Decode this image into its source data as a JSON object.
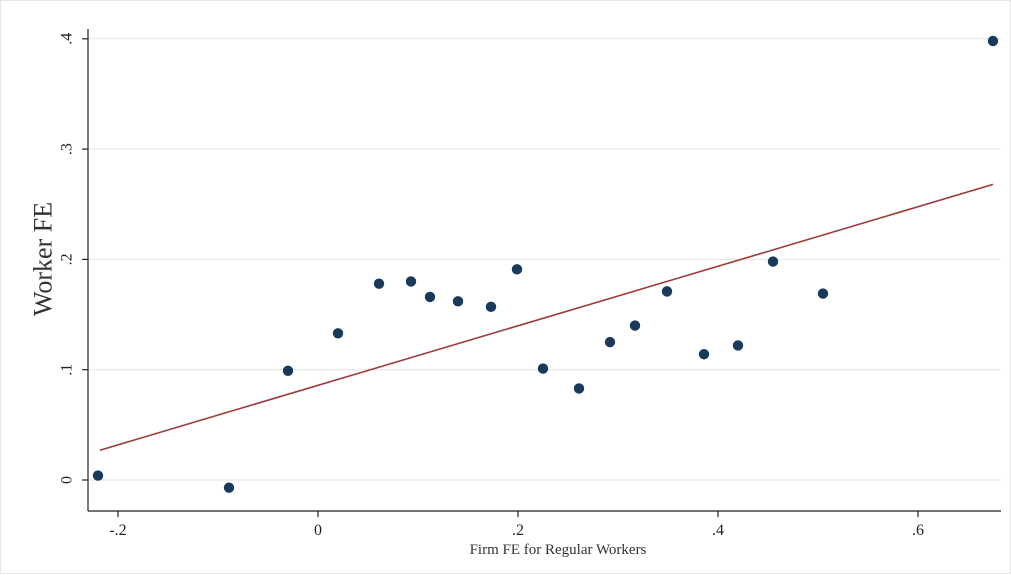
{
  "chart_data": {
    "type": "scatter",
    "xlabel": "Firm FE for Regular Workers",
    "ylabel": "Worker FE",
    "xlim": [
      -0.2,
      0.6
    ],
    "ylim": [
      0,
      0.4
    ],
    "x_ticks": [
      -0.2,
      0,
      0.2,
      0.4,
      0.6
    ],
    "x_tick_labels": [
      "-.2",
      "0",
      ".2",
      ".4",
      ".6"
    ],
    "y_ticks": [
      0,
      0.1,
      0.2,
      0.3,
      0.4
    ],
    "y_tick_labels": [
      "0",
      ".1",
      ".2",
      ".3",
      ".4"
    ],
    "grid": "horizontal",
    "legend": "none",
    "series": [
      {
        "type": "scatter",
        "color": "#1a3a5c",
        "points": [
          {
            "x": -0.22,
            "y": 0.004
          },
          {
            "x": -0.089,
            "y": -0.007
          },
          {
            "x": -0.03,
            "y": 0.099
          },
          {
            "x": 0.02,
            "y": 0.133
          },
          {
            "x": 0.061,
            "y": 0.178
          },
          {
            "x": 0.093,
            "y": 0.18
          },
          {
            "x": 0.112,
            "y": 0.166
          },
          {
            "x": 0.14,
            "y": 0.162
          },
          {
            "x": 0.173,
            "y": 0.157
          },
          {
            "x": 0.199,
            "y": 0.191
          },
          {
            "x": 0.225,
            "y": 0.101
          },
          {
            "x": 0.261,
            "y": 0.083
          },
          {
            "x": 0.292,
            "y": 0.125
          },
          {
            "x": 0.317,
            "y": 0.14
          },
          {
            "x": 0.349,
            "y": 0.171
          },
          {
            "x": 0.386,
            "y": 0.114
          },
          {
            "x": 0.42,
            "y": 0.122
          },
          {
            "x": 0.455,
            "y": 0.198
          },
          {
            "x": 0.505,
            "y": 0.169
          },
          {
            "x": 0.675,
            "y": 0.398
          }
        ]
      },
      {
        "type": "line",
        "color": "#9c3b3b",
        "points": [
          {
            "x": -0.218,
            "y": 0.027
          },
          {
            "x": 0.675,
            "y": 0.268
          }
        ]
      }
    ]
  }
}
